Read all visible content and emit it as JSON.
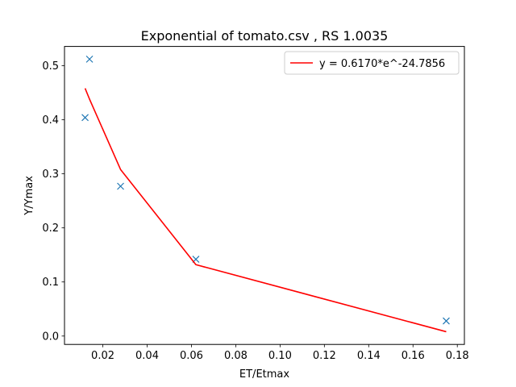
{
  "chart_data": {
    "type": "scatter",
    "title": "Exponential of tomato.csv , RS 1.0035",
    "xlabel": "ET/Etmax",
    "ylabel": "Y/Ymax",
    "xlim": [
      0.0027,
      0.1832
    ],
    "ylim": [
      -0.0155,
      0.5355
    ],
    "xticks": [
      0.02,
      0.04,
      0.06,
      0.08,
      0.1,
      0.12,
      0.14,
      0.16,
      0.18
    ],
    "xtick_labels": [
      "0.02",
      "0.04",
      "0.06",
      "0.08",
      "0.10",
      "0.12",
      "0.14",
      "0.16",
      "0.18"
    ],
    "yticks": [
      0.0,
      0.1,
      0.2,
      0.3,
      0.4,
      0.5
    ],
    "ytick_labels": [
      "0.0",
      "0.1",
      "0.2",
      "0.3",
      "0.4",
      "0.5"
    ],
    "grid": false,
    "legend_position": "top-right",
    "series": [
      {
        "type": "scatter",
        "marker": "x",
        "color": "#1f77b4",
        "x": [
          0.012,
          0.014,
          0.028,
          0.062,
          0.175
        ],
        "y": [
          0.404,
          0.512,
          0.277,
          0.142,
          0.028
        ]
      },
      {
        "type": "line",
        "name": "y = 0.6170*e^-24.7856",
        "color": "#ff0000",
        "x": [
          0.012,
          0.014,
          0.028,
          0.062,
          0.175
        ],
        "y": [
          0.458,
          0.438,
          0.308,
          0.132,
          0.008
        ]
      }
    ]
  }
}
